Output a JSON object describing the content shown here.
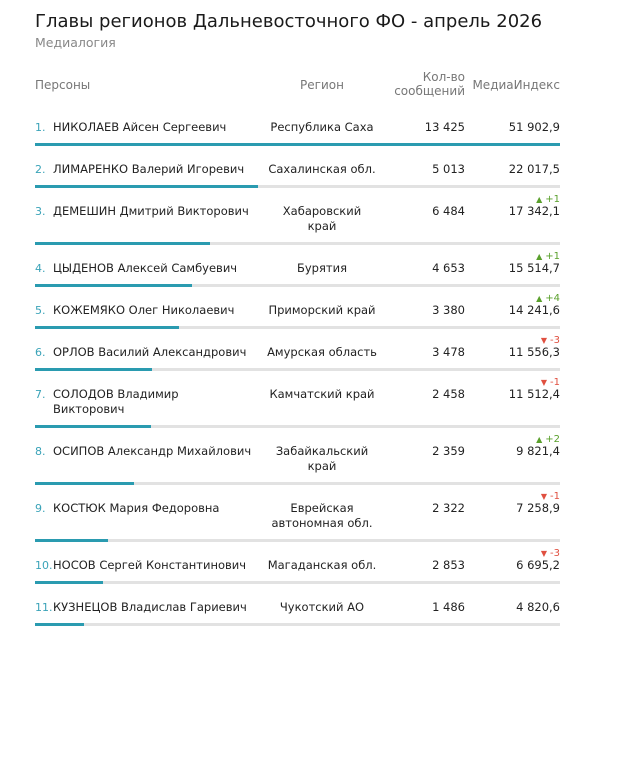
{
  "header": {
    "title": "Главы регионов Дальневосточного ФО - апрель 2026",
    "subtitle": "Медиалогия"
  },
  "table": {
    "columns": [
      "Персоны",
      "Регион",
      "Кол-во сообщений",
      "МедиаИндекс"
    ],
    "rows": [
      {
        "rank": "1.",
        "name": "НИКОЛАЕВ Айсен Сергеевич",
        "region": "Республика Саха",
        "messages": "13 425",
        "index": "51 902,9"
      },
      {
        "rank": "2.",
        "name": "ЛИМАРЕНКО Валерий Игоревич",
        "region": "Сахалинская обл.",
        "messages": "5 013",
        "index": "22 017,5"
      },
      {
        "rank": "3.",
        "name": "ДЕМЕШИН Дмитрий Викторович",
        "region": "Хабаровский край",
        "messages": "6 484",
        "index": "17 342,1",
        "change": "+1"
      },
      {
        "rank": "4.",
        "name": "ЦЫДЕНОВ Алексей Самбуевич",
        "region": "Бурятия",
        "messages": "4 653",
        "index": "15 514,7",
        "change": "+1"
      },
      {
        "rank": "5.",
        "name": "КОЖЕМЯКО Олег Николаевич",
        "region": "Приморский край",
        "messages": "3 380",
        "index": "14 241,6",
        "change": "+4"
      },
      {
        "rank": "6.",
        "name": "ОРЛОВ Василий Александрович",
        "region": "Амурская область",
        "messages": "3 478",
        "index": "11 556,3",
        "change": "-3"
      },
      {
        "rank": "7.",
        "name": "СОЛОДОВ Владимир Викторович",
        "region": "Камчатский край",
        "messages": "2 458",
        "index": "11 512,4",
        "change": "-1"
      },
      {
        "rank": "8.",
        "name": "ОСИПОВ Александр Михайлович",
        "region": "Забайкальский край",
        "messages": "2 359",
        "index": "9 821,4",
        "change": "+2"
      },
      {
        "rank": "9.",
        "name": "КОСТЮК Мария Федоровна",
        "region": "Еврейская автономная обл.",
        "messages": "2 322",
        "index": "7 258,9",
        "change": "-1"
      },
      {
        "rank": "10.",
        "name": "НОСОВ Сергей Константинович",
        "region": "Магаданская обл.",
        "messages": "2 853",
        "index": "6 695,2",
        "change": "-3"
      },
      {
        "rank": "11.",
        "name": "КУЗНЕЦОВ Владислав Гариевич",
        "region": "Чукотский АО",
        "messages": "1 486",
        "index": "4 820,6"
      }
    ]
  }
}
